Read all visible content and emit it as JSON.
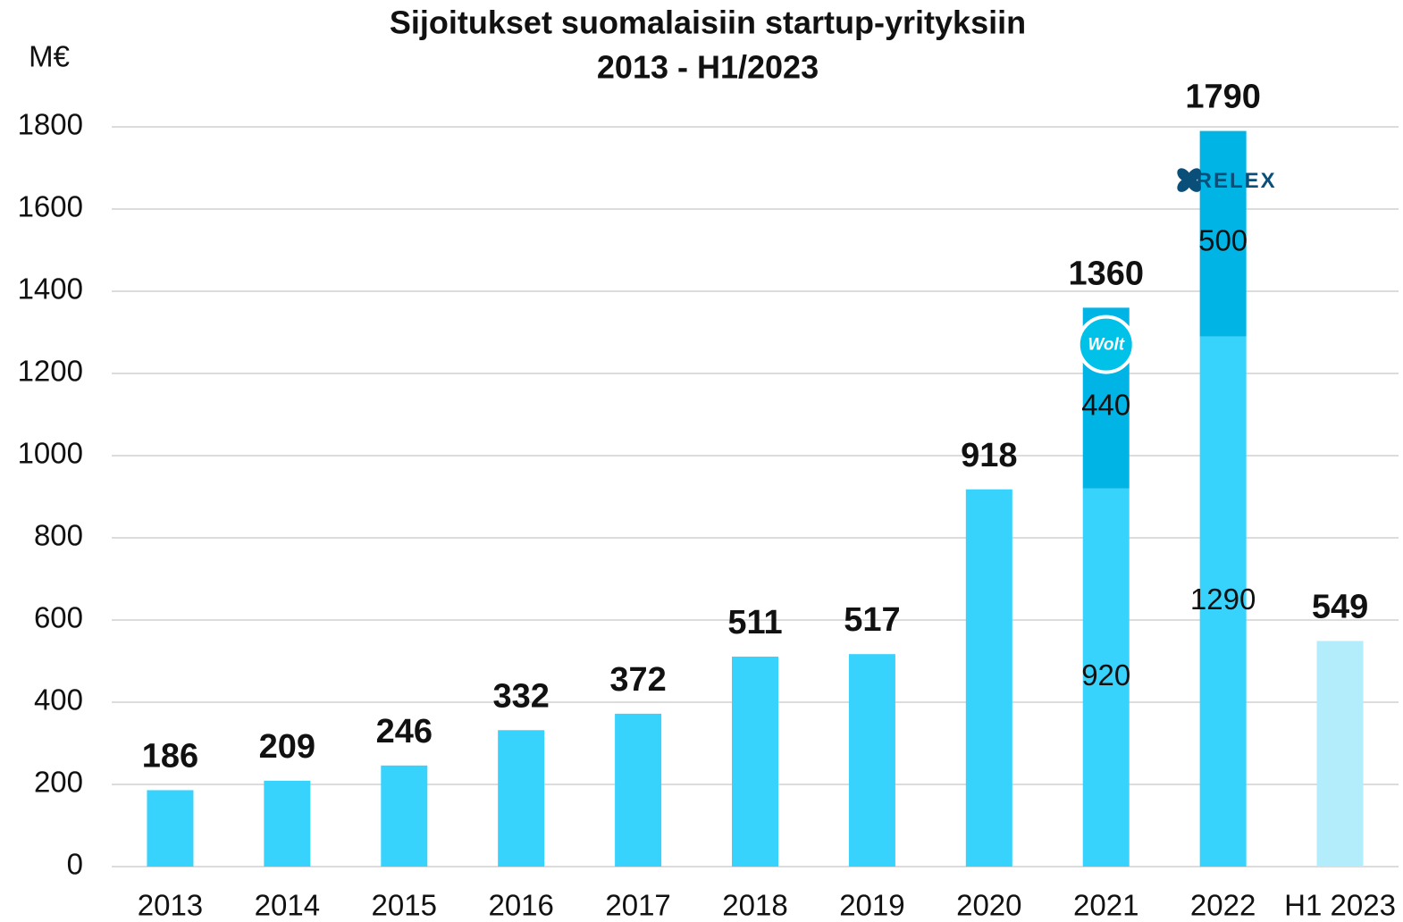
{
  "chart_data": {
    "type": "stacked_bar",
    "title": "Sijoitukset suomalaisiin startup-yrityksiin",
    "subtitle": "2013 - H1/2023",
    "y_label": "M€",
    "categories": [
      "2013",
      "2014",
      "2015",
      "2016",
      "2017",
      "2018",
      "2019",
      "2020",
      "2021",
      "2022",
      "H1 2023"
    ],
    "series": [
      {
        "colors": [
          "#38d3fd",
          "#38d3fd",
          "#38d3fd",
          "#38d3fd",
          "#38d3fd",
          "#38d3fd",
          "#38d3fd",
          "#38d3fd",
          "#38d3fd",
          "#38d3fd",
          "#b3ecfb"
        ],
        "values": [
          186,
          209,
          246,
          332,
          372,
          511,
          517,
          918,
          920,
          1290,
          549
        ]
      },
      {
        "color": "#00b5e6",
        "values": [
          null,
          null,
          null,
          null,
          null,
          null,
          null,
          null,
          440,
          500,
          null
        ]
      }
    ],
    "totals": [
      186,
      209,
      246,
      332,
      372,
      511,
      517,
      918,
      1360,
      1790,
      549
    ],
    "annotations": [
      {
        "text": "Wolt",
        "category": "2021"
      },
      {
        "text": "RELEX",
        "category": "2022"
      }
    ],
    "ylim": [
      0,
      1800
    ],
    "yticks": [
      0,
      200,
      400,
      600,
      800,
      1000,
      1200,
      1400,
      1600,
      1800
    ],
    "grid": true
  }
}
